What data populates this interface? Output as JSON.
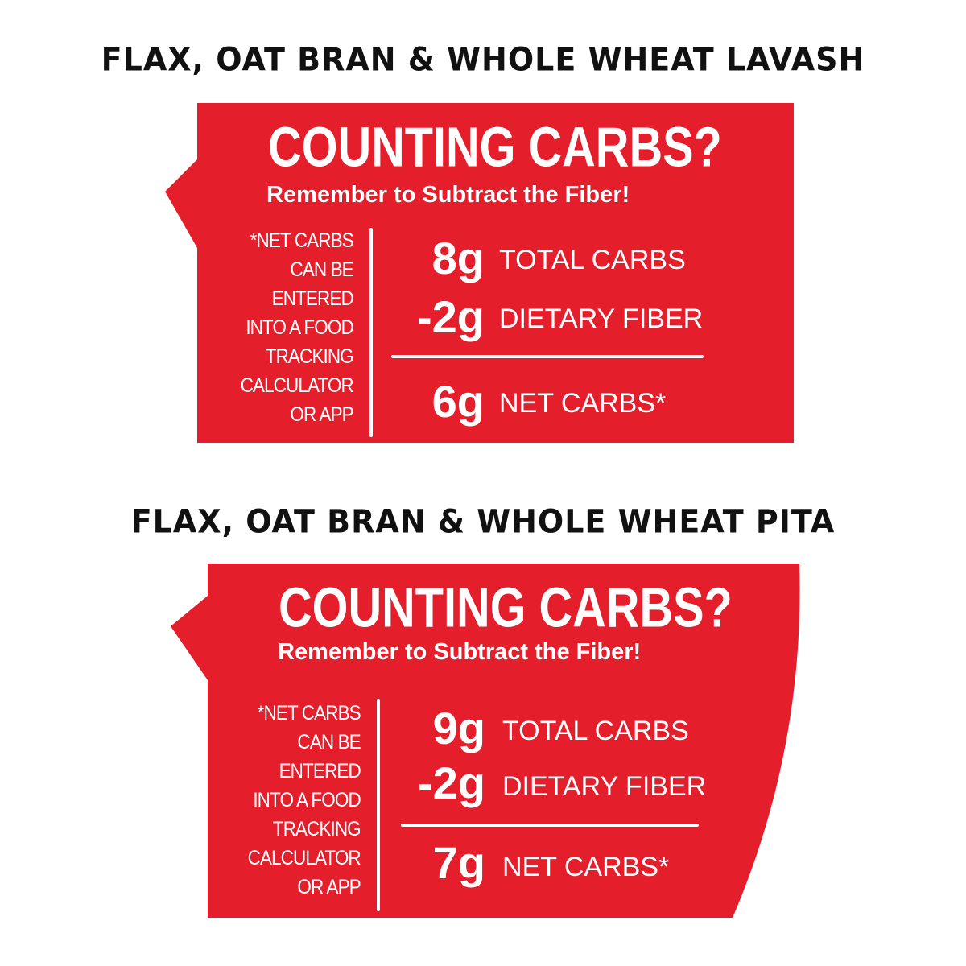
{
  "colors": {
    "card_red": "#e41e2b",
    "text_white": "#ffffff",
    "title_black": "#111111"
  },
  "panels": [
    {
      "product_title": "FLAX, OAT BRAN & WHOLE WHEAT LAVASH",
      "headline": "COUNTING CARBS?",
      "subheadline": "Remember to Subtract the Fiber!",
      "note_lines": [
        "*NET CARBS",
        "CAN BE",
        "ENTERED",
        "INTO A FOOD",
        "TRACKING",
        "CALCULATOR",
        "OR APP"
      ],
      "total_carbs": {
        "amount": "8g",
        "label": "TOTAL CARBS"
      },
      "dietary_fiber": {
        "amount": "-2g",
        "label": "DIETARY FIBER"
      },
      "net_carbs": {
        "amount": "6g",
        "label": "NET CARBS*"
      }
    },
    {
      "product_title": "FLAX, OAT BRAN & WHOLE WHEAT PITA",
      "headline": "COUNTING CARBS?",
      "subheadline": "Remember to Subtract the Fiber!",
      "note_lines": [
        "*NET CARBS",
        "CAN BE",
        "ENTERED",
        "INTO A FOOD",
        "TRACKING",
        "CALCULATOR",
        "OR APP"
      ],
      "total_carbs": {
        "amount": "9g",
        "label": "TOTAL CARBS"
      },
      "dietary_fiber": {
        "amount": "-2g",
        "label": "DIETARY FIBER"
      },
      "net_carbs": {
        "amount": "7g",
        "label": "NET CARBS*"
      }
    }
  ]
}
